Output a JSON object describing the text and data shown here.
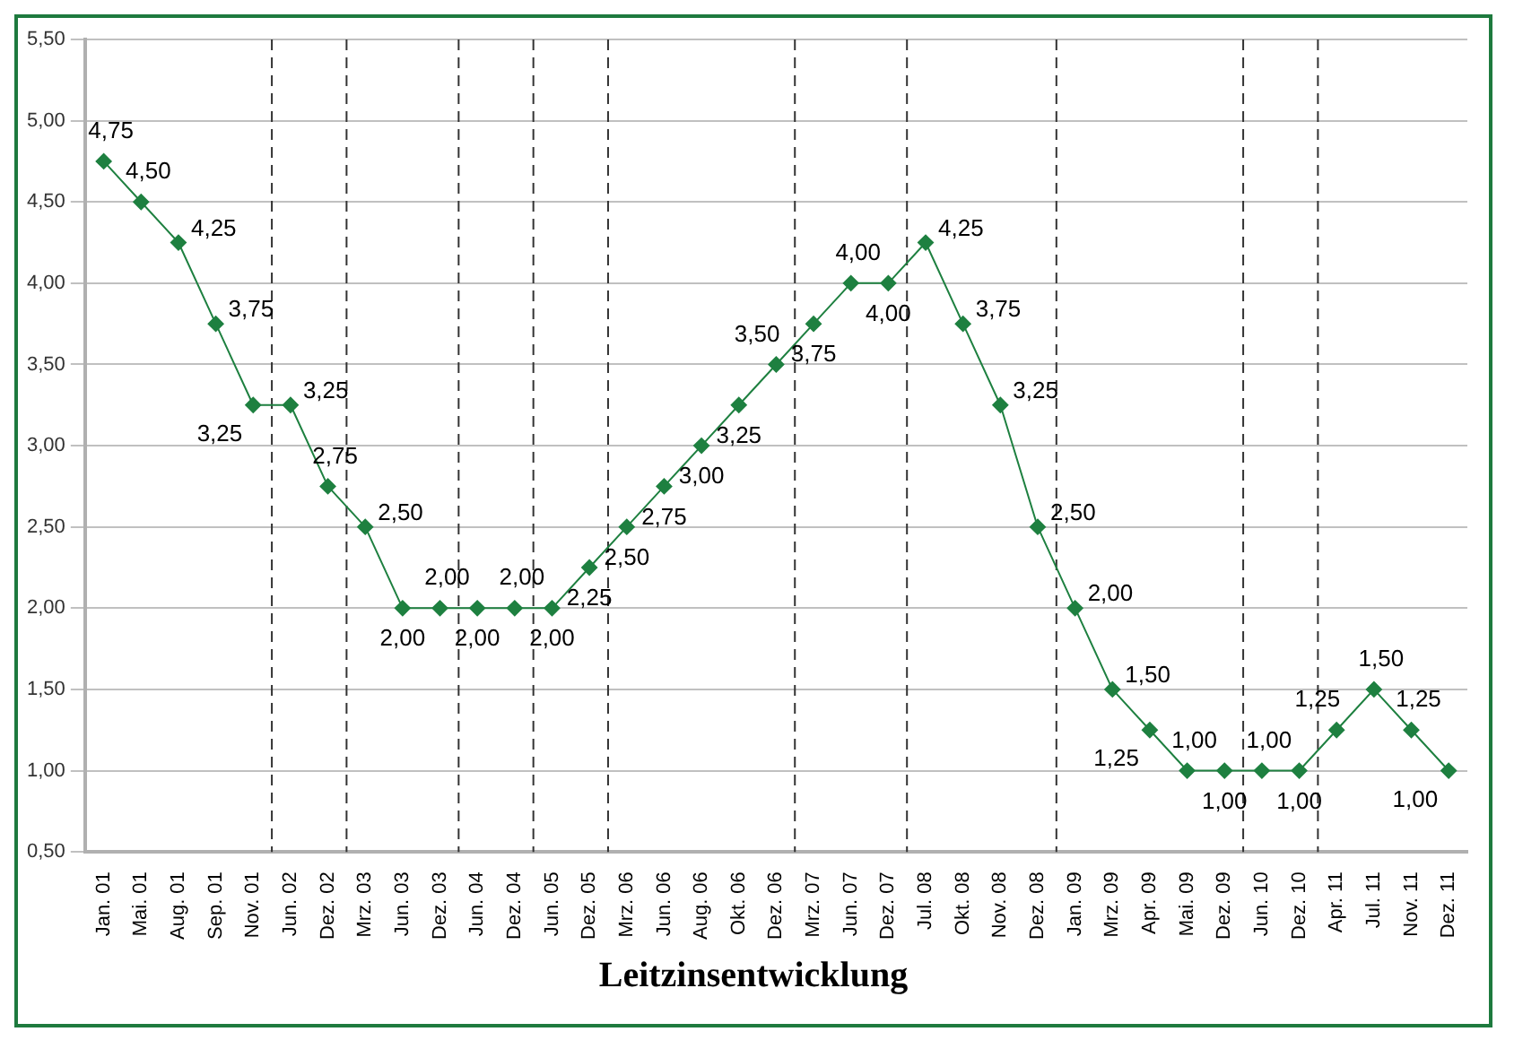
{
  "chart_data": {
    "type": "line",
    "title": "Leitzinsentwicklung",
    "categories": [
      "Jan. 01",
      "Mai. 01",
      "Aug. 01",
      "Sep. 01",
      "Nov. 01",
      "Jun. 02",
      "Dez. 02",
      "Mrz. 03",
      "Jun. 03",
      "Dez. 03",
      "Jun. 04",
      "Dez. 04",
      "Jun. 05",
      "Dez. 05",
      "Mrz. 06",
      "Jun. 06",
      "Aug. 06",
      "Okt. 06",
      "Dez. 06",
      "Mrz. 07",
      "Jun. 07",
      "Dez. 07",
      "Jul. 08",
      "Okt. 08",
      "Nov. 08",
      "Dez. 08",
      "Jan. 09",
      "Mrz. 09",
      "Apr. 09",
      "Mai. 09",
      "Dez. 09",
      "Jun. 10",
      "Dez. 10",
      "Apr. 11",
      "Jul. 11",
      "Nov. 11",
      "Dez. 11"
    ],
    "series": [
      {
        "color": "#1e8040",
        "values": [
          4.75,
          4.5,
          4.25,
          3.75,
          3.25,
          3.25,
          2.75,
          2.5,
          2.0,
          2.0,
          2.0,
          2.0,
          2.0,
          2.25,
          2.5,
          2.75,
          3.0,
          3.25,
          3.5,
          3.75,
          4.0,
          4.0,
          4.25,
          3.75,
          3.25,
          2.5,
          2.0,
          1.5,
          1.25,
          1.0,
          1.0,
          1.0,
          1.0,
          1.25,
          1.5,
          1.25,
          1.0
        ],
        "value_labels": [
          "4,75",
          "4,50",
          "4,25",
          "3,75",
          "3,25",
          "3,25",
          "2,75",
          "2,50",
          "2,00",
          "2,00",
          "2,00",
          "2,00",
          "2,00",
          "2,25",
          "2,50",
          "2,75",
          "3,00",
          "3,25",
          "3,50",
          "3,75",
          "4,00",
          "4,00",
          "4,25",
          "3,75",
          "3,25",
          "2,50",
          "2,00",
          "1,50",
          "1,25",
          "1,00",
          "1,00",
          "1,00",
          "1,00",
          "1,25",
          "1,50",
          "1,25",
          "1,00"
        ]
      }
    ],
    "ylim": [
      0.5,
      5.5
    ],
    "yticks": [
      {
        "value": 0.5,
        "label": "0,50"
      },
      {
        "value": 1.0,
        "label": "1,00"
      },
      {
        "value": 1.5,
        "label": "1,50"
      },
      {
        "value": 2.0,
        "label": "2,00"
      },
      {
        "value": 2.5,
        "label": "2,50"
      },
      {
        "value": 3.0,
        "label": "3,00"
      },
      {
        "value": 3.5,
        "label": "3,50"
      },
      {
        "value": 4.0,
        "label": "4,00"
      },
      {
        "value": 4.5,
        "label": "4,50"
      },
      {
        "value": 5.0,
        "label": "5,00"
      },
      {
        "value": 5.5,
        "label": "5,50"
      }
    ],
    "grid": "y",
    "marker": "diamond",
    "line_style": "solid"
  }
}
